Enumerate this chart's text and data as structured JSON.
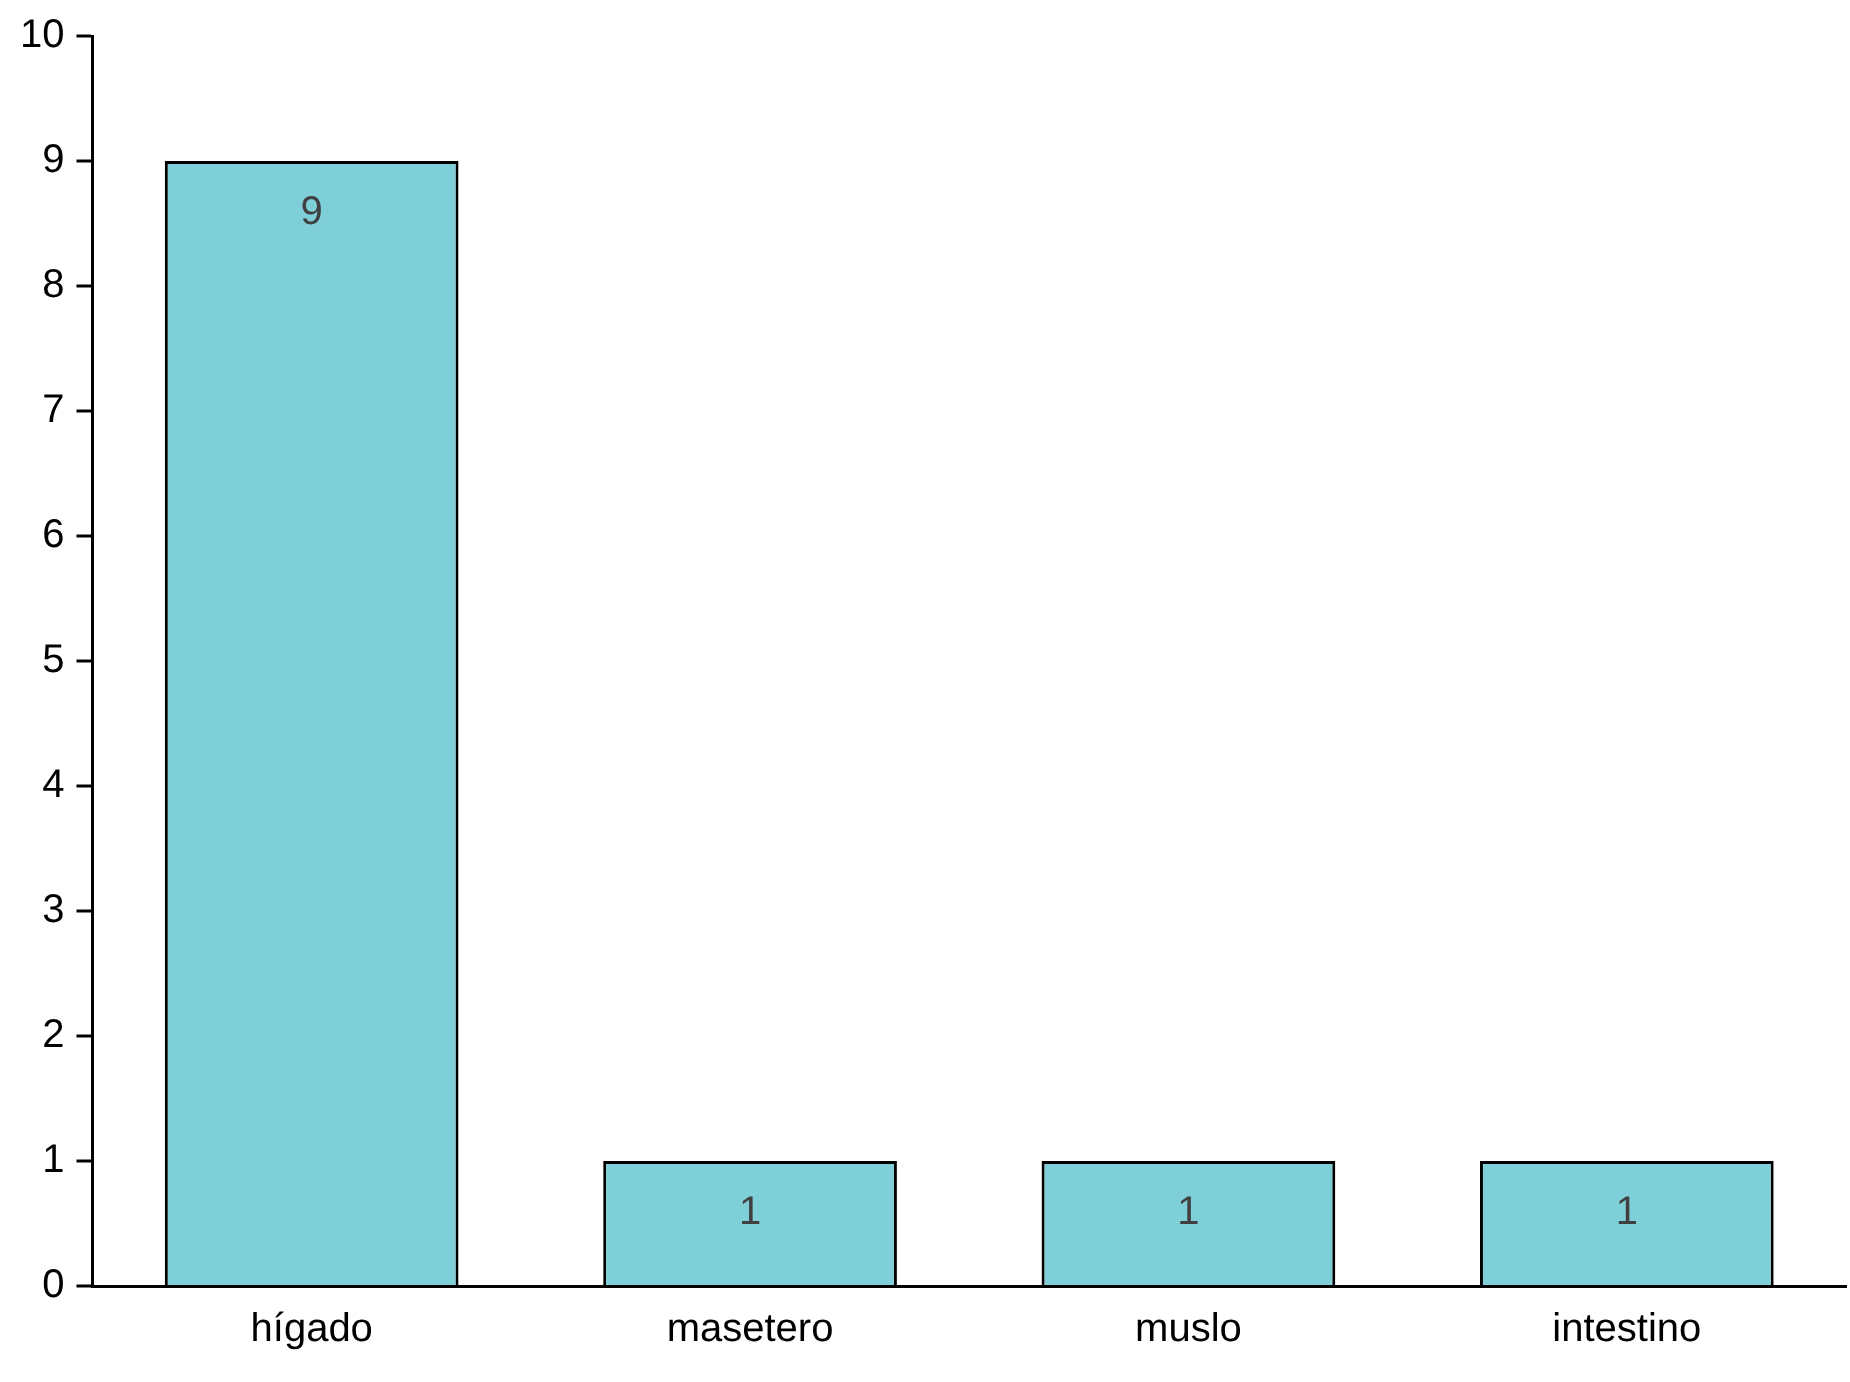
{
  "chart_data": {
    "type": "bar",
    "categories": [
      "hígado",
      "masetero",
      "muslo",
      "intestino"
    ],
    "values": [
      9,
      1,
      1,
      1
    ],
    "color": "#7ecfd8",
    "ylim": [
      0,
      10
    ],
    "yticks": [
      0,
      1,
      2,
      3,
      4,
      5,
      6,
      7,
      8,
      9,
      10
    ],
    "grid": false,
    "legend": false,
    "data_labels": true
  }
}
